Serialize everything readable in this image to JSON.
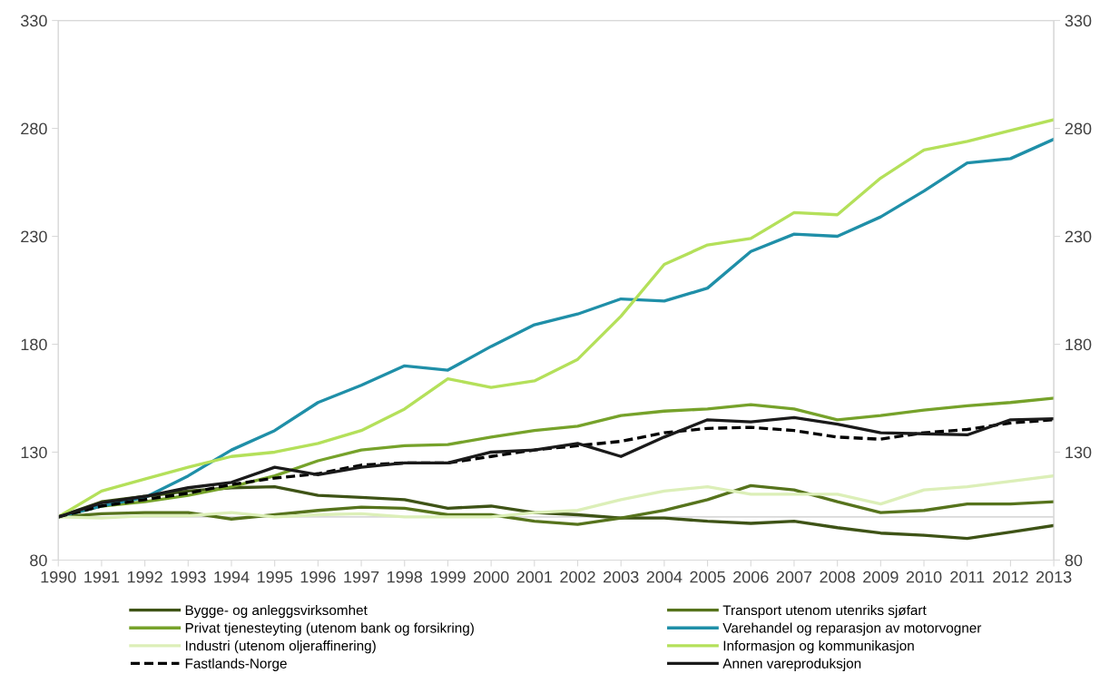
{
  "chart_data": {
    "type": "line",
    "x": [
      1990,
      1991,
      1992,
      1993,
      1994,
      1995,
      1996,
      1997,
      1998,
      1999,
      2000,
      2001,
      2002,
      2003,
      2004,
      2005,
      2006,
      2007,
      2008,
      2009,
      2010,
      2011,
      2012,
      2013
    ],
    "xlim": [
      1990,
      2013
    ],
    "xticks": [
      1990,
      1991,
      1992,
      1993,
      1994,
      1995,
      1996,
      1997,
      1998,
      1999,
      2000,
      2001,
      2002,
      2003,
      2004,
      2005,
      2006,
      2007,
      2008,
      2009,
      2010,
      2011,
      2012,
      2013
    ],
    "ylim": [
      80,
      330
    ],
    "yticks": [
      80,
      130,
      180,
      230,
      280,
      330
    ],
    "y2lim": [
      80,
      330
    ],
    "y2ticks": [
      80,
      130,
      180,
      230,
      280,
      330
    ],
    "grid": false,
    "legend": "bottom",
    "line_style": "solid",
    "marker": "none",
    "ref_lines": [
      {
        "axis": "y",
        "value": 100,
        "color": "#d9d9d9"
      }
    ],
    "series": [
      {
        "name": "Bygge- og anleggsvirksomhet",
        "color": "#3e5316",
        "values": [
          100,
          107,
          109.5,
          112,
          113.5,
          114,
          110,
          109,
          108,
          104,
          105,
          102,
          101,
          99.5,
          99.5,
          98,
          97,
          98,
          95,
          92.5,
          91.5,
          90,
          93,
          96
        ]
      },
      {
        "name": "Transport utenom utenriks sjøfart",
        "color": "#56731c",
        "values": [
          100,
          101.5,
          102,
          102,
          99,
          101,
          103,
          104.5,
          104,
          101,
          101,
          98,
          96.5,
          99.5,
          103,
          108,
          114.5,
          112.5,
          107,
          102,
          103,
          106,
          106,
          107
        ]
      },
      {
        "name": "Privat tjenesteyting (utenom bank og forsikring)",
        "color": "#76a22a",
        "values": [
          100,
          105,
          107,
          110,
          114,
          119,
          126,
          131,
          133,
          133.5,
          137,
          140,
          142,
          147,
          149,
          150,
          152,
          150,
          145,
          147,
          149.5,
          151.5,
          153,
          155
        ]
      },
      {
        "name": "Varehandel og reparasjon av motorvogner",
        "color": "#1f8fa8",
        "values": [
          100,
          105,
          109,
          119,
          131,
          140,
          153,
          161,
          170,
          168,
          179,
          189,
          194,
          201,
          200,
          206,
          223,
          231,
          230,
          239,
          251,
          264,
          266,
          275
        ]
      },
      {
        "name": "Industri (utenom oljeraffinering)",
        "color": "#dcefb8",
        "values": [
          100,
          99.5,
          100.5,
          100.5,
          102,
          100,
          101,
          101.5,
          100,
          100,
          100,
          102,
          103,
          108,
          112,
          114,
          110.5,
          110.5,
          110.5,
          106,
          112.5,
          114,
          116.5,
          119
        ]
      },
      {
        "name": "Informasjon og kommunikasjon",
        "color": "#b4e05a",
        "values": [
          100,
          112,
          117.5,
          123,
          128,
          130,
          134,
          140,
          150,
          164,
          160,
          163,
          173,
          193,
          217,
          226,
          229,
          241,
          240,
          257,
          270,
          274,
          279,
          284
        ]
      },
      {
        "name": "Fastlands-Norge",
        "color": "#000000",
        "line_style": "dashed",
        "values": [
          100,
          105,
          108,
          111,
          115,
          118,
          120,
          124,
          125,
          125,
          128,
          131,
          133,
          135,
          139,
          141,
          141.5,
          140,
          137,
          136,
          139,
          140.5,
          143.5,
          145
        ]
      },
      {
        "name": "Annen vareproduksjon",
        "color": "#1a1a1a",
        "values": [
          100,
          106.5,
          109.5,
          113.5,
          116,
          123,
          119.5,
          123,
          125,
          125,
          130,
          131,
          134,
          128,
          137,
          145,
          144,
          146,
          143,
          139,
          138.5,
          138,
          145,
          145.5
        ]
      }
    ]
  }
}
